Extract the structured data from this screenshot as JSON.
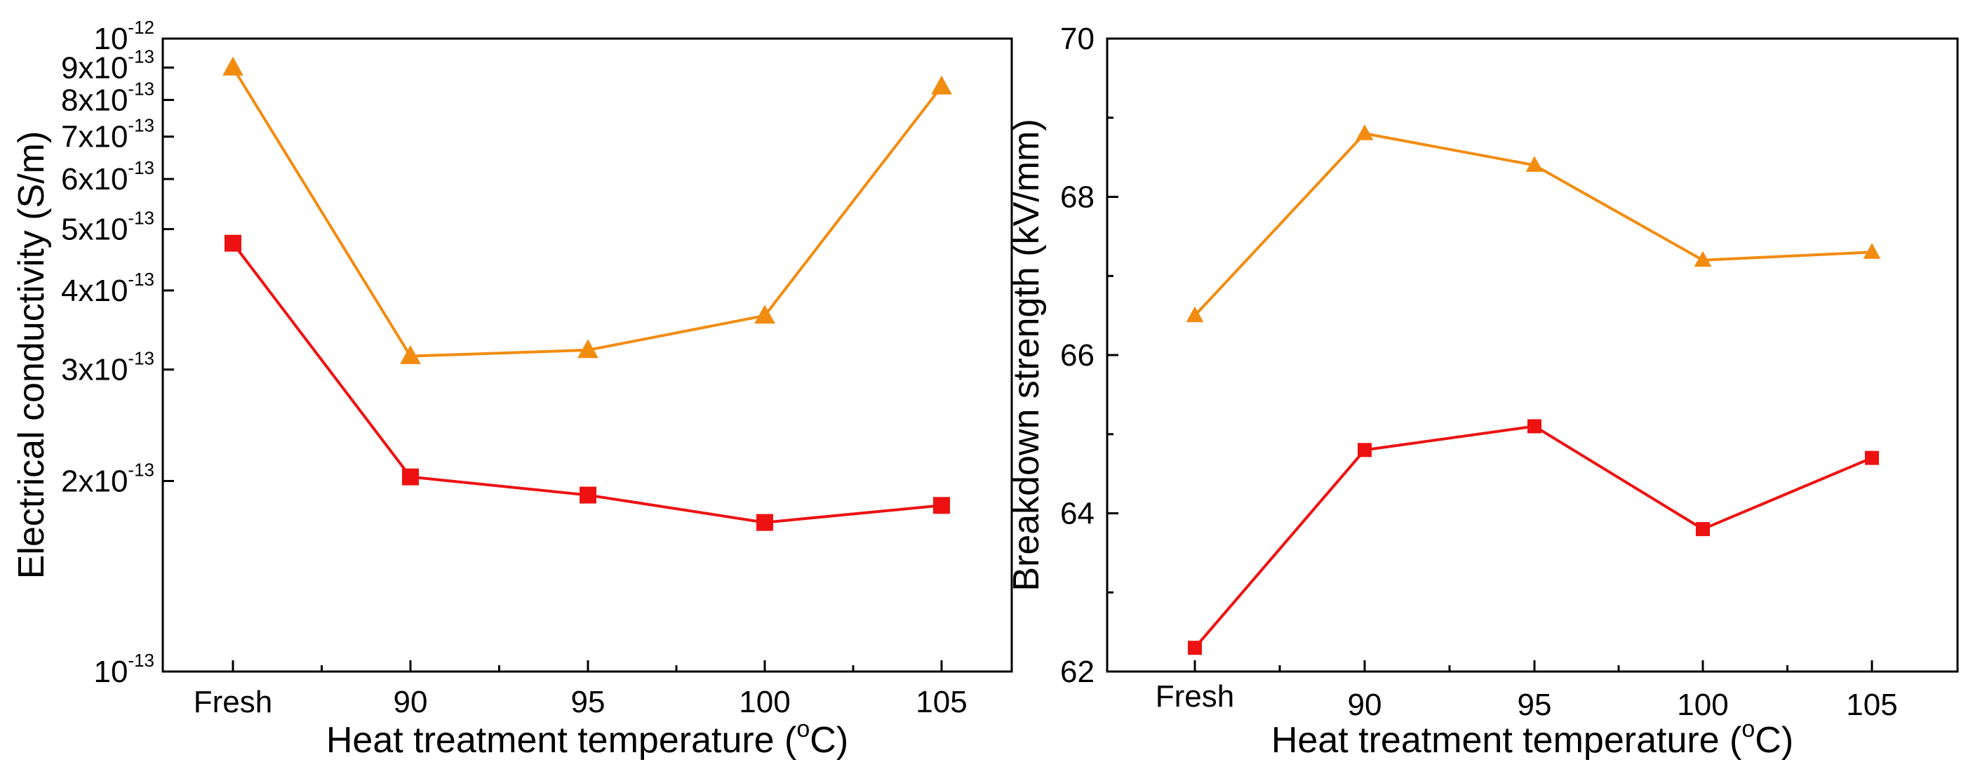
{
  "chart_data": [
    {
      "type": "line",
      "scale": "log",
      "categories": [
        "Fresh",
        "90",
        "95",
        "100",
        "105"
      ],
      "xlabel": {
        "text": "Heat treatment temperature (",
        "sup": "o",
        "unit": "C)"
      },
      "ylabel": "Electrical conductivity (S/m)",
      "ylim": [
        1e-13,
        1e-12
      ],
      "yticks": [
        {
          "mant": "10",
          "exp": "-13",
          "value": 1e-13
        },
        {
          "mant": "2x10",
          "exp": "-13",
          "value": 2e-13
        },
        {
          "mant": "3x10",
          "exp": "-13",
          "value": 3e-13
        },
        {
          "mant": "4x10",
          "exp": "-13",
          "value": 4e-13
        },
        {
          "mant": "5x10",
          "exp": "-13",
          "value": 5e-13
        },
        {
          "mant": "6x10",
          "exp": "-13",
          "value": 6e-13
        },
        {
          "mant": "7x10",
          "exp": "-13",
          "value": 7e-13
        },
        {
          "mant": "8x10",
          "exp": "-13",
          "value": 8e-13
        },
        {
          "mant": "9x10",
          "exp": "-13",
          "value": 9e-13
        },
        {
          "mant": "10",
          "exp": "-12",
          "value": 1e-12
        }
      ],
      "series": [
        {
          "name": "triangle-series",
          "marker": "triangle",
          "color": "#F28C10",
          "values": [
            9e-13,
            3.15e-13,
            3.22e-13,
            3.65e-13,
            8.4e-13
          ]
        },
        {
          "name": "square-series",
          "marker": "square",
          "color": "#EE1111",
          "values": [
            4.75e-13,
            2.03e-13,
            1.9e-13,
            1.72e-13,
            1.83e-13
          ]
        }
      ]
    },
    {
      "type": "line",
      "scale": "linear",
      "categories": [
        "Fresh",
        "90",
        "95",
        "100",
        "105"
      ],
      "xlabel": {
        "text": "Heat treatment temperature (",
        "sup": "o",
        "unit": "C)"
      },
      "ylabel": "Breakdown strength (kV/mm)",
      "ylim": [
        62,
        70
      ],
      "yticks": [
        {
          "label": "62",
          "value": 62
        },
        {
          "label": "64",
          "value": 64
        },
        {
          "label": "66",
          "value": 66
        },
        {
          "label": "68",
          "value": 68
        },
        {
          "label": "70",
          "value": 70
        }
      ],
      "series": [
        {
          "name": "triangle-series",
          "marker": "triangle",
          "color": "#F28C10",
          "values": [
            66.5,
            68.8,
            68.4,
            67.2,
            67.3
          ]
        },
        {
          "name": "square-series",
          "marker": "square",
          "color": "#EE1111",
          "values": [
            62.3,
            64.8,
            65.1,
            63.8,
            64.7
          ]
        }
      ]
    }
  ]
}
